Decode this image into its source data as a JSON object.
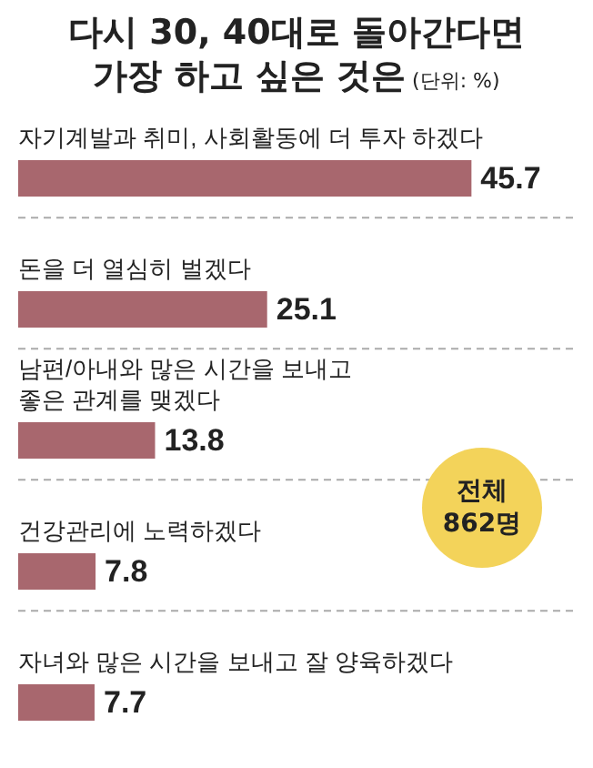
{
  "chart_data": {
    "type": "bar",
    "orientation": "horizontal",
    "title": "다시 30, 40대로 돌아간다면\n가장 하고 싶은 것은",
    "subtitle": "(단위: %)",
    "categories": [
      "자기계발과 취미, 사회활동에 더 투자 하겠다",
      "돈을 더 열심히 벌겠다",
      "남편/아내와 많은 시간을 보내고\n좋은 관계를 맺겠다",
      "건강관리에 노력하겠다",
      "자녀와 많은 시간을 보내고 잘 양육하겠다"
    ],
    "values": [
      45.7,
      25.1,
      13.8,
      7.8,
      7.7
    ],
    "color": "#a8676e",
    "data_labels": true,
    "grid": "y",
    "annotations": [
      "전체 862명"
    ]
  }
}
